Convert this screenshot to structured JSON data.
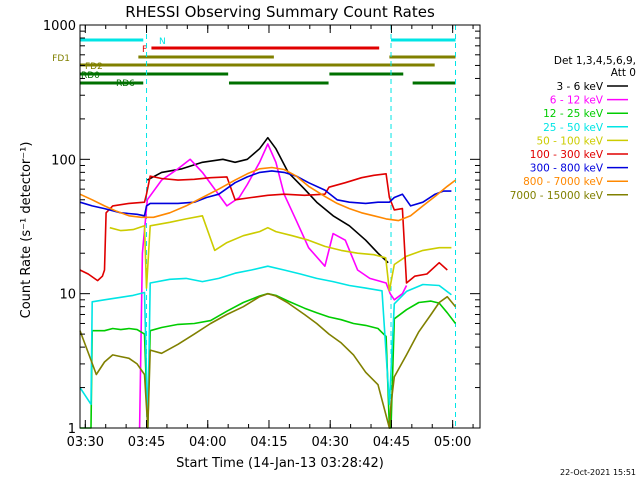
{
  "chart_data": {
    "type": "line",
    "title": "RHESSI Observing Summary Count Rates",
    "xlabel": "Start Time (14-Jan-13 03:28:42)",
    "ylabel": "Count Rate (s⁻¹ detector⁻¹)",
    "y_scale": "log",
    "ylim": [
      1,
      1000
    ],
    "x_unit": "minutes after 03:28:42",
    "xlim": [
      0,
      98
    ],
    "x_ticks": [
      {
        "label": "03:30",
        "t": 1.3
      },
      {
        "label": "03:45",
        "t": 16.3
      },
      {
        "label": "04:00",
        "t": 31.3
      },
      {
        "label": "04:15",
        "t": 46.3
      },
      {
        "label": "04:30",
        "t": 61.3
      },
      {
        "label": "04:45",
        "t": 76.3
      },
      {
        "label": "05:00",
        "t": 91.3
      }
    ],
    "y_ticks": [
      {
        "label": "1",
        "v": 1
      },
      {
        "label": "10",
        "v": 10
      },
      {
        "label": "100",
        "v": 100
      },
      {
        "label": "1000",
        "v": 1000
      }
    ],
    "legend": {
      "header": [
        "Det 1,3,4,5,6,9,",
        "Att 0"
      ],
      "placement": "right"
    },
    "timestamp": "22-Oct-2021 15:51",
    "flag_bars": [
      {
        "label": "N",
        "color": "#00e5e5",
        "segments": [
          [
            0,
            15.5
          ],
          [
            76.2,
            92
          ]
        ]
      },
      {
        "label": "F",
        "color": "#e00000",
        "segments": [
          [
            17.5,
            73.3
          ]
        ]
      },
      {
        "label": "FD1",
        "color": "#808000",
        "segments": [
          [
            14.3,
            47.5
          ],
          [
            75.8,
            92
          ]
        ]
      },
      {
        "label": "FD2",
        "color": "#808000",
        "segments": [
          [
            0,
            86.9
          ]
        ]
      },
      {
        "label": "RD0",
        "color": "#007000",
        "segments": [
          [
            0,
            36.3
          ],
          [
            61.1,
            79.2
          ]
        ]
      },
      {
        "label": "RD6",
        "color": "#007000",
        "segments": [
          [
            0,
            15.5
          ],
          [
            36.5,
            60.9
          ],
          [
            81.5,
            92
          ]
        ]
      }
    ],
    "gap_lines": [
      0,
      16.3,
      76.2,
      92
    ],
    "series": [
      {
        "name": "3 - 6 keV",
        "color": "#000000",
        "points": [
          [
            16.5,
            70
          ],
          [
            20,
            80
          ],
          [
            25,
            85
          ],
          [
            30,
            95
          ],
          [
            35,
            100
          ],
          [
            38,
            95
          ],
          [
            41,
            100
          ],
          [
            44,
            120
          ],
          [
            46,
            145
          ],
          [
            48,
            120
          ],
          [
            51,
            80
          ],
          [
            55,
            60
          ],
          [
            58,
            48
          ],
          [
            62,
            38
          ],
          [
            66,
            32
          ],
          [
            70,
            25
          ],
          [
            73,
            20
          ],
          [
            75.5,
            17
          ]
        ]
      },
      {
        "name": "6 - 12 keV",
        "color": "#ff00ff",
        "points": [
          [
            14.6,
            1
          ],
          [
            15.3,
            20
          ],
          [
            16.5,
            50
          ],
          [
            20,
            70
          ],
          [
            24,
            85
          ],
          [
            27,
            100
          ],
          [
            30,
            80
          ],
          [
            33,
            60
          ],
          [
            36,
            45
          ],
          [
            39,
            52
          ],
          [
            41,
            65
          ],
          [
            44,
            95
          ],
          [
            46,
            130
          ],
          [
            48,
            95
          ],
          [
            50,
            55
          ],
          [
            53,
            35
          ],
          [
            56,
            22
          ],
          [
            60,
            16
          ],
          [
            62,
            28
          ],
          [
            65,
            25
          ],
          [
            68,
            15
          ],
          [
            71,
            13
          ],
          [
            75,
            12
          ],
          [
            76,
            10
          ],
          [
            77,
            9
          ],
          [
            79,
            10
          ],
          [
            80,
            11.5
          ]
        ]
      },
      {
        "name": "12 - 25 keV",
        "color": "#00cc00",
        "points": [
          [
            0,
            1
          ],
          [
            2.7,
            1
          ],
          [
            3,
            5.3
          ],
          [
            6,
            5.3
          ],
          [
            8,
            5.5
          ],
          [
            10,
            5.4
          ],
          [
            12,
            5.5
          ],
          [
            14,
            5.4
          ],
          [
            15.8,
            5
          ],
          [
            16.6,
            1
          ],
          [
            17.2,
            5.3
          ],
          [
            20,
            5.6
          ],
          [
            24,
            5.9
          ],
          [
            28,
            6
          ],
          [
            32,
            6.3
          ],
          [
            36,
            7.4
          ],
          [
            40,
            8.6
          ],
          [
            44,
            9.6
          ],
          [
            46,
            10
          ],
          [
            48,
            9.7
          ],
          [
            51,
            8.8
          ],
          [
            55,
            7.8
          ],
          [
            58,
            7.2
          ],
          [
            61,
            6.7
          ],
          [
            64,
            6.4
          ],
          [
            67,
            6
          ],
          [
            70,
            5.8
          ],
          [
            73,
            5.5
          ],
          [
            75,
            4.8
          ],
          [
            75.8,
            1
          ],
          [
            76.2,
            1
          ],
          [
            77,
            6.5
          ],
          [
            80,
            7.6
          ],
          [
            83,
            8.6
          ],
          [
            86,
            8.8
          ],
          [
            88,
            8.5
          ],
          [
            90,
            7.2
          ],
          [
            92,
            6
          ]
        ]
      },
      {
        "name": "25 - 50 keV",
        "color": "#00e5e5",
        "points": [
          [
            0,
            2
          ],
          [
            2.7,
            1.5
          ],
          [
            3,
            8.7
          ],
          [
            6,
            9
          ],
          [
            10,
            9.4
          ],
          [
            13,
            9.7
          ],
          [
            15.8,
            10.2
          ],
          [
            16.6,
            1
          ],
          [
            17.2,
            12
          ],
          [
            22,
            12.8
          ],
          [
            26,
            13
          ],
          [
            30,
            12.3
          ],
          [
            34,
            13
          ],
          [
            38,
            14.2
          ],
          [
            42,
            15
          ],
          [
            46,
            16
          ],
          [
            50,
            15
          ],
          [
            54,
            14
          ],
          [
            58,
            13
          ],
          [
            62,
            12.3
          ],
          [
            66,
            11.5
          ],
          [
            70,
            11
          ],
          [
            74,
            10.5
          ],
          [
            75.8,
            1.5
          ],
          [
            77,
            8.4
          ],
          [
            80,
            10.4
          ],
          [
            84,
            11.7
          ],
          [
            88,
            11.5
          ],
          [
            91,
            9.8
          ]
        ]
      },
      {
        "name": "50 - 100 keV",
        "color": "#cccc00",
        "points": [
          [
            7.3,
            31
          ],
          [
            10,
            29.5
          ],
          [
            13,
            30
          ],
          [
            15.8,
            32
          ],
          [
            16.3,
            11
          ],
          [
            17.2,
            32
          ],
          [
            22,
            34
          ],
          [
            26,
            36
          ],
          [
            30,
            38
          ],
          [
            33,
            21
          ],
          [
            36,
            24
          ],
          [
            40,
            27
          ],
          [
            44,
            29
          ],
          [
            46,
            31
          ],
          [
            48,
            29
          ],
          [
            52,
            27
          ],
          [
            56,
            25
          ],
          [
            60,
            22.5
          ],
          [
            64,
            21
          ],
          [
            68,
            20
          ],
          [
            72,
            19.5
          ],
          [
            74.9,
            18.5
          ],
          [
            75.8,
            10.5
          ],
          [
            77,
            16.5
          ],
          [
            80,
            19
          ],
          [
            84,
            21
          ],
          [
            88,
            22
          ],
          [
            91,
            22
          ]
        ]
      },
      {
        "name": "100 - 300 keV",
        "color": "#e00000",
        "points": [
          [
            0,
            15
          ],
          [
            2,
            14
          ],
          [
            4.3,
            12.5
          ],
          [
            5.5,
            13.5
          ],
          [
            6,
            15
          ],
          [
            6.4,
            40
          ],
          [
            8,
            45
          ],
          [
            12,
            47
          ],
          [
            15.8,
            48
          ],
          [
            16.3,
            55
          ],
          [
            17.2,
            75
          ],
          [
            20,
            72
          ],
          [
            24,
            70
          ],
          [
            28,
            71
          ],
          [
            32,
            73
          ],
          [
            36,
            74
          ],
          [
            38,
            50
          ],
          [
            42,
            52
          ],
          [
            46,
            54
          ],
          [
            50,
            55
          ],
          [
            55,
            54
          ],
          [
            60,
            55
          ],
          [
            61,
            62
          ],
          [
            65,
            67
          ],
          [
            69,
            73
          ],
          [
            72,
            76
          ],
          [
            75,
            78
          ],
          [
            75.8,
            52
          ],
          [
            77,
            42
          ],
          [
            79,
            43
          ],
          [
            80,
            12
          ],
          [
            82,
            13.5
          ],
          [
            85,
            14
          ],
          [
            88,
            17
          ],
          [
            90,
            15
          ]
        ]
      },
      {
        "name": "300 - 800 keV",
        "color": "#0000dd",
        "points": [
          [
            0,
            48
          ],
          [
            3,
            45
          ],
          [
            6,
            43
          ],
          [
            10,
            40
          ],
          [
            14,
            39
          ],
          [
            15.8,
            38
          ],
          [
            16.3,
            45
          ],
          [
            17.2,
            47
          ],
          [
            20,
            47
          ],
          [
            24,
            47
          ],
          [
            28,
            48
          ],
          [
            31,
            52
          ],
          [
            34,
            55
          ],
          [
            38,
            67
          ],
          [
            41,
            74
          ],
          [
            44,
            80
          ],
          [
            47,
            82
          ],
          [
            50,
            80
          ],
          [
            53,
            75
          ],
          [
            56,
            67
          ],
          [
            60,
            59
          ],
          [
            63,
            50
          ],
          [
            66,
            48
          ],
          [
            70,
            47
          ],
          [
            73,
            48
          ],
          [
            75.8,
            48
          ],
          [
            77,
            52
          ],
          [
            79,
            55
          ],
          [
            81,
            45
          ],
          [
            84,
            48
          ],
          [
            87,
            55
          ],
          [
            89,
            58
          ],
          [
            91,
            58
          ]
        ]
      },
      {
        "name": "800 - 7000 keV",
        "color": "#ff8800",
        "points": [
          [
            0,
            55
          ],
          [
            3,
            50
          ],
          [
            6,
            45
          ],
          [
            9,
            41
          ],
          [
            12,
            38
          ],
          [
            15,
            37
          ],
          [
            18,
            37
          ],
          [
            22,
            40
          ],
          [
            26,
            45
          ],
          [
            30,
            52
          ],
          [
            34,
            60
          ],
          [
            38,
            70
          ],
          [
            41,
            78
          ],
          [
            44,
            85
          ],
          [
            47,
            87
          ],
          [
            50,
            84
          ],
          [
            53,
            75
          ],
          [
            56,
            63
          ],
          [
            60,
            53
          ],
          [
            63,
            47
          ],
          [
            66,
            43
          ],
          [
            69,
            40
          ],
          [
            72,
            38
          ],
          [
            75,
            36
          ],
          [
            78,
            35
          ],
          [
            81,
            38
          ],
          [
            84,
            45
          ],
          [
            87,
            53
          ],
          [
            90,
            63
          ],
          [
            92,
            70
          ]
        ]
      },
      {
        "name": "7000 - 15000 keV",
        "color": "#808000",
        "points": [
          [
            0,
            5.3
          ],
          [
            1,
            4.4
          ],
          [
            2.7,
            3.2
          ],
          [
            4,
            2.5
          ],
          [
            6,
            3.1
          ],
          [
            8,
            3.5
          ],
          [
            10,
            3.4
          ],
          [
            12,
            3.3
          ],
          [
            14,
            3
          ],
          [
            15.8,
            2.5
          ],
          [
            16.6,
            1
          ],
          [
            17.2,
            3.8
          ],
          [
            20,
            3.6
          ],
          [
            24,
            4.2
          ],
          [
            28,
            5
          ],
          [
            32,
            6
          ],
          [
            36,
            7
          ],
          [
            40,
            8
          ],
          [
            44,
            9.5
          ],
          [
            46,
            10
          ],
          [
            48,
            9.6
          ],
          [
            51,
            8.5
          ],
          [
            55,
            7
          ],
          [
            58,
            6
          ],
          [
            61,
            5
          ],
          [
            64,
            4.3
          ],
          [
            67,
            3.5
          ],
          [
            70,
            2.6
          ],
          [
            73,
            2.1
          ],
          [
            75.8,
            1
          ],
          [
            76.2,
            1.5
          ],
          [
            77,
            2.4
          ],
          [
            80,
            3.5
          ],
          [
            83,
            5.2
          ],
          [
            86,
            7
          ],
          [
            88,
            8.6
          ],
          [
            90,
            9.5
          ],
          [
            92,
            8
          ]
        ]
      }
    ]
  }
}
